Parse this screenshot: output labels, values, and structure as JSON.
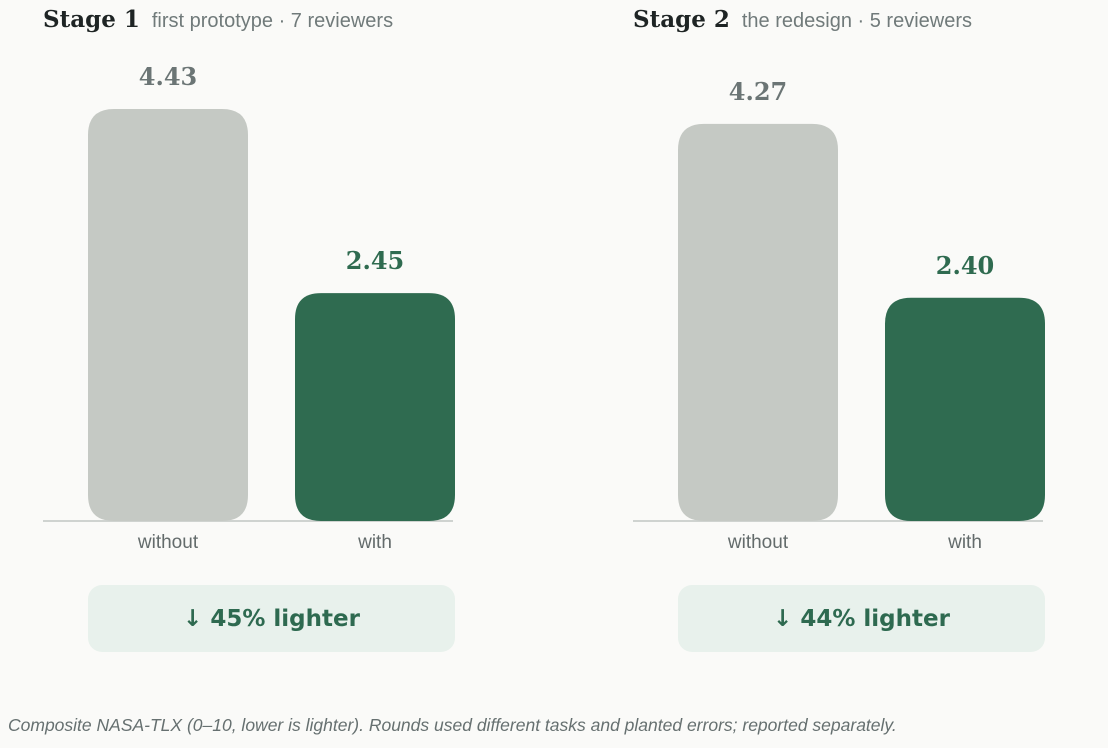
{
  "colors": {
    "without_bar": "#c5c9c4",
    "with_bar": "#2f6b50",
    "without_label": "#6b7575",
    "with_label": "#2f6b50",
    "baseline": "#cfd3d0",
    "badge_bg": "#e8f1ec",
    "badge_text": "#2e6a50"
  },
  "panels": [
    {
      "title": "Stage 1",
      "subtitle": "first prototype · 7 reviewers",
      "badge": {
        "icon": "down-arrow-icon",
        "arrow": "↓",
        "text": "45% lighter"
      }
    },
    {
      "title": "Stage 2",
      "subtitle": "the redesign · 5 reviewers",
      "badge": {
        "icon": "down-arrow-icon",
        "arrow": "↓",
        "text": "44% lighter"
      }
    }
  ],
  "chart_data": [
    {
      "type": "bar",
      "title": "Stage 1",
      "subtitle": "first prototype · 7 reviewers",
      "categories": [
        "without",
        "with"
      ],
      "values": [
        4.43,
        2.45
      ],
      "value_labels": [
        "4.43",
        "2.45"
      ],
      "ylim": [
        0,
        4.43
      ],
      "grid": false
    },
    {
      "type": "bar",
      "title": "Stage 2",
      "subtitle": "the redesign · 5 reviewers",
      "categories": [
        "without",
        "with"
      ],
      "values": [
        4.27,
        2.4
      ],
      "value_labels": [
        "4.27",
        "2.40"
      ],
      "ylim": [
        0,
        4.43
      ],
      "grid": false
    }
  ],
  "footnote": "Composite NASA-TLX (0–10, lower is lighter). Rounds used different tasks and planted errors; reported separately."
}
